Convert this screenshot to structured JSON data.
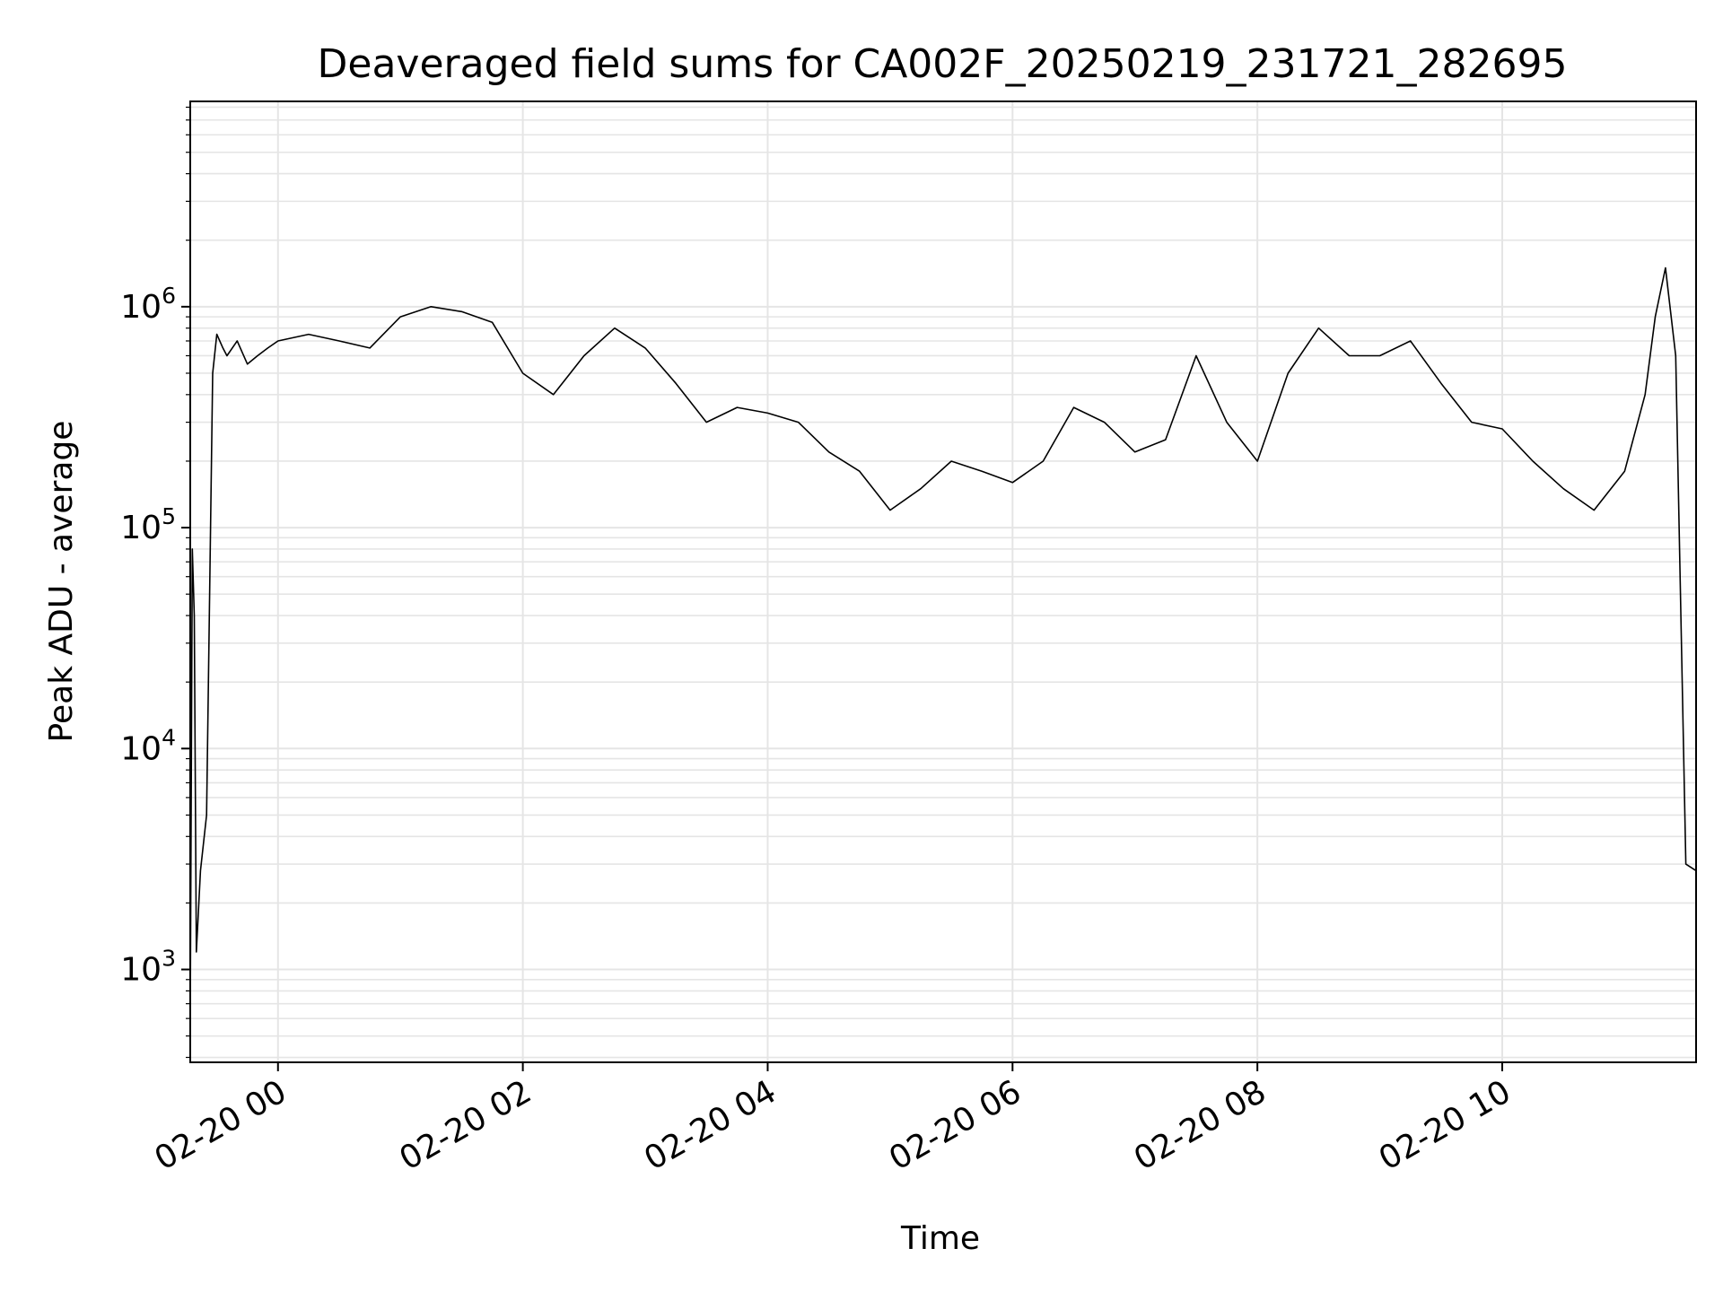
{
  "chart_data": {
    "type": "line",
    "title": "Deaveraged field sums for CA002F_20250219_231721_282695",
    "xlabel": "Time",
    "ylabel": "Peak ADU - average",
    "yscale": "log",
    "ylim": [
      380,
      8500000
    ],
    "xlim": [
      "2025-02-19 23:17",
      "2025-02-20 11:35"
    ],
    "grid": true,
    "legend": "none",
    "line_color": "#000000",
    "grid_color": "#e5e5e5",
    "x_ticks": [
      {
        "value": "2025-02-20 00:00",
        "label": "02-20 00"
      },
      {
        "value": "2025-02-20 02:00",
        "label": "02-20 02"
      },
      {
        "value": "2025-02-20 04:00",
        "label": "02-20 04"
      },
      {
        "value": "2025-02-20 06:00",
        "label": "02-20 06"
      },
      {
        "value": "2025-02-20 08:00",
        "label": "02-20 08"
      },
      {
        "value": "2025-02-20 10:00",
        "label": "02-20 10"
      }
    ],
    "y_ticks": [
      {
        "value": 1000,
        "base": "10",
        "exp": "3"
      },
      {
        "value": 10000,
        "base": "10",
        "exp": "4"
      },
      {
        "value": 100000,
        "base": "10",
        "exp": "5"
      },
      {
        "value": 1000000,
        "base": "10",
        "exp": "6"
      }
    ],
    "series": [
      {
        "x": [
          "2025-02-19 23:17",
          "2025-02-19 23:18",
          "2025-02-19 23:19",
          "2025-02-19 23:20",
          "2025-02-19 23:22",
          "2025-02-19 23:25",
          "2025-02-19 23:28",
          "2025-02-19 23:30",
          "2025-02-19 23:33",
          "2025-02-19 23:35",
          "2025-02-19 23:40",
          "2025-02-19 23:45",
          "2025-02-19 23:50",
          "2025-02-19 23:55",
          "2025-02-20 00:00",
          "2025-02-20 00:15",
          "2025-02-20 00:30",
          "2025-02-20 00:45",
          "2025-02-20 01:00",
          "2025-02-20 01:15",
          "2025-02-20 01:30",
          "2025-02-20 01:45",
          "2025-02-20 02:00",
          "2025-02-20 02:15",
          "2025-02-20 02:30",
          "2025-02-20 02:45",
          "2025-02-20 03:00",
          "2025-02-20 03:15",
          "2025-02-20 03:30",
          "2025-02-20 03:45",
          "2025-02-20 04:00",
          "2025-02-20 04:15",
          "2025-02-20 04:30",
          "2025-02-20 04:45",
          "2025-02-20 05:00",
          "2025-02-20 05:15",
          "2025-02-20 05:30",
          "2025-02-20 05:45",
          "2025-02-20 06:00",
          "2025-02-20 06:15",
          "2025-02-20 06:30",
          "2025-02-20 06:45",
          "2025-02-20 07:00",
          "2025-02-20 07:15",
          "2025-02-20 07:30",
          "2025-02-20 07:45",
          "2025-02-20 08:00",
          "2025-02-20 08:15",
          "2025-02-20 08:30",
          "2025-02-20 08:45",
          "2025-02-20 09:00",
          "2025-02-20 09:15",
          "2025-02-20 09:30",
          "2025-02-20 09:45",
          "2025-02-20 10:00",
          "2025-02-20 10:15",
          "2025-02-20 10:30",
          "2025-02-20 10:45",
          "2025-02-20 11:00",
          "2025-02-20 11:10",
          "2025-02-20 11:15",
          "2025-02-20 11:20",
          "2025-02-20 11:25",
          "2025-02-20 11:30",
          "2025-02-20 11:35"
        ],
        "y": [
          600,
          80000,
          40000,
          1200,
          2800,
          5000,
          500000,
          750000,
          650000,
          600000,
          700000,
          550000,
          600000,
          650000,
          700000,
          750000,
          700000,
          650000,
          900000,
          1000000,
          950000,
          850000,
          500000,
          400000,
          600000,
          800000,
          650000,
          450000,
          300000,
          350000,
          330000,
          300000,
          220000,
          180000,
          120000,
          150000,
          200000,
          180000,
          160000,
          200000,
          350000,
          300000,
          220000,
          250000,
          600000,
          300000,
          200000,
          500000,
          800000,
          600000,
          600000,
          700000,
          450000,
          300000,
          280000,
          200000,
          150000,
          120000,
          180000,
          400000,
          900000,
          1500000,
          600000,
          3000,
          2800
        ]
      }
    ]
  }
}
